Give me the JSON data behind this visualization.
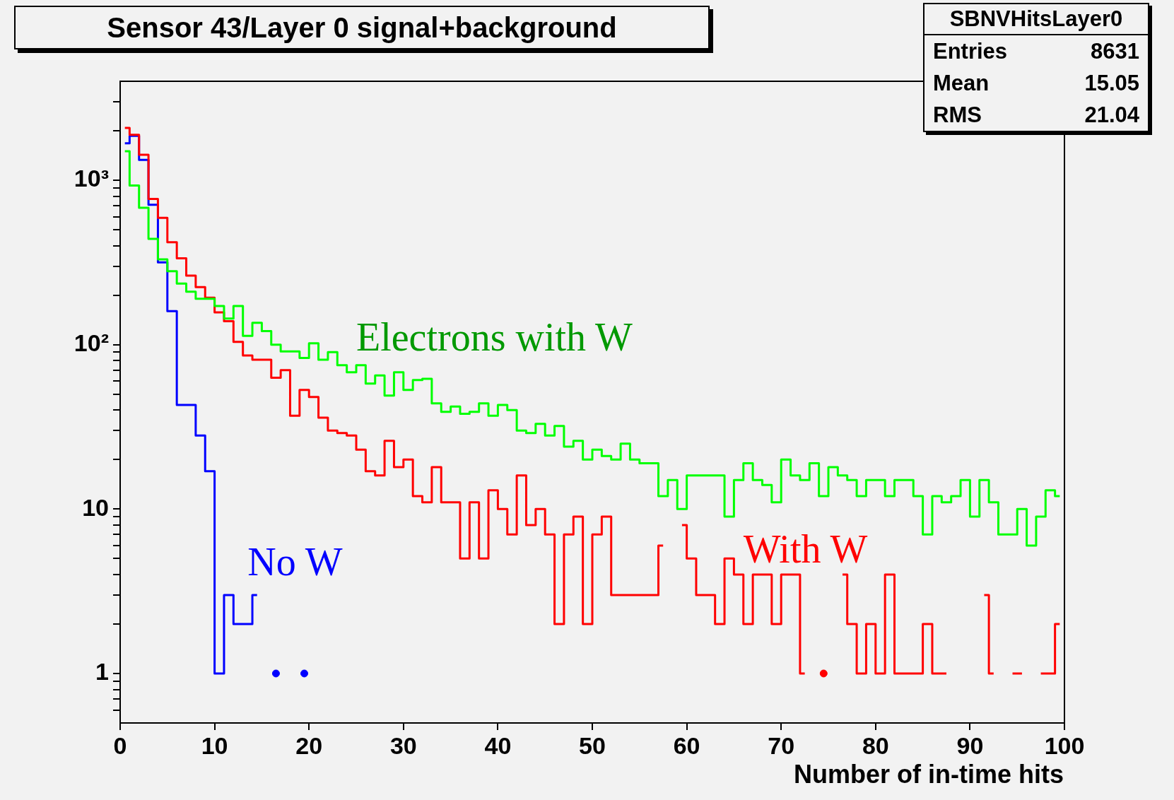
{
  "chart_data": {
    "type": "step",
    "title": "Sensor 43/Layer 0 signal+background",
    "xlabel": "Number of in-time hits",
    "annotations": [
      "SBNVHitsLayer0",
      "Entries",
      "8631",
      "Mean",
      "15.05",
      "RMS",
      "21.04"
    ],
    "x": [
      0.5,
      1.5,
      2.5,
      3.5,
      4.5,
      5.5,
      6.5,
      7.5,
      8.5,
      9.5,
      10.5,
      11.5,
      12.5,
      13.5,
      14.5,
      15.5,
      16.5,
      17.5,
      18.5,
      19.5,
      20.5,
      21.5,
      22.5,
      23.5,
      24.5,
      25.5,
      26.5,
      27.5,
      28.5,
      29.5,
      30.5,
      31.5,
      32.5,
      33.5,
      34.5,
      35.5,
      36.5,
      37.5,
      38.5,
      39.5,
      40.5,
      41.5,
      42.5,
      43.5,
      44.5,
      45.5,
      46.5,
      47.5,
      48.5,
      49.5,
      50.5,
      51.5,
      52.5,
      53.5,
      54.5,
      55.5,
      56.5,
      57.5,
      58.5,
      59.5,
      60.5,
      61.5,
      62.5,
      63.5,
      64.5,
      65.5,
      66.5,
      67.5,
      68.5,
      69.5,
      70.5,
      71.5,
      72.5,
      73.5,
      74.5,
      75.5,
      76.5,
      77.5,
      78.5,
      79.5,
      80.5,
      81.5,
      82.5,
      83.5,
      84.5,
      85.5,
      86.5,
      87.5,
      88.5,
      89.5,
      90.5,
      91.5,
      92.5,
      93.5,
      94.5,
      95.5,
      96.5,
      97.5,
      98.5,
      99.5
    ],
    "series": [
      {
        "name": "Electrons with W",
        "color": "#00ff00",
        "values": [
          1500,
          930,
          680,
          440,
          330,
          280,
          235,
          210,
          190,
          190,
          172,
          144,
          172,
          113,
          136,
          121,
          100,
          91,
          91,
          83,
          102,
          81,
          90,
          75,
          68,
          75,
          58,
          65,
          49,
          68,
          53,
          61,
          62,
          44,
          39,
          42,
          38,
          39,
          44,
          37,
          43,
          40,
          30,
          29,
          33,
          28,
          32,
          24,
          26,
          20,
          23,
          21,
          20,
          25,
          20,
          19,
          19,
          12,
          15,
          10,
          16,
          16,
          16,
          16,
          9,
          15,
          19,
          15,
          14,
          11,
          20,
          16,
          15,
          19,
          12,
          18,
          16,
          15,
          12,
          15,
          15,
          12,
          15,
          15,
          12,
          7,
          12,
          11,
          12,
          15,
          9,
          15,
          11,
          7,
          7,
          10,
          6,
          9,
          13,
          12
        ]
      },
      {
        "name": "With W",
        "color": "#ff0000",
        "values": [
          2080,
          1890,
          1430,
          770,
          590,
          420,
          335,
          263,
          224,
          193,
          157,
          139,
          104,
          86,
          81,
          81,
          63,
          70,
          37,
          53,
          48,
          36,
          30,
          29,
          28,
          23,
          17,
          16,
          26,
          18,
          20,
          12,
          11,
          18,
          11,
          11,
          5,
          11,
          5,
          13,
          10,
          7,
          16,
          8,
          10,
          7,
          2,
          7,
          9,
          2,
          7,
          9,
          3,
          3,
          3,
          3,
          3,
          6,
          null,
          8,
          5,
          3,
          3,
          2,
          5,
          4,
          2,
          4,
          4,
          2,
          4,
          4,
          1,
          null,
          1,
          null,
          4,
          2,
          1,
          2,
          1,
          4,
          1,
          1,
          1,
          2,
          1,
          1,
          null,
          null,
          null,
          3,
          1,
          null,
          1,
          1,
          null,
          1,
          1,
          2
        ]
      },
      {
        "name": "No W",
        "color": "#0000ff",
        "values": [
          1680,
          1860,
          1330,
          710,
          317,
          160,
          43,
          43,
          28,
          17,
          1,
          3,
          2,
          2,
          3,
          null,
          1,
          null,
          null,
          1,
          null,
          null,
          null,
          null,
          null,
          null,
          null,
          null,
          null,
          null,
          null,
          null,
          null,
          null,
          null,
          null,
          null,
          null,
          null,
          null,
          null,
          null,
          null,
          null,
          null,
          null,
          null,
          null,
          null,
          null,
          null,
          null,
          null,
          null,
          null,
          null,
          null,
          null,
          null,
          null,
          null,
          null,
          null,
          null,
          null,
          null,
          null,
          null,
          null,
          null,
          null,
          null,
          null,
          null,
          null,
          null,
          null,
          null,
          null,
          null,
          null,
          null,
          null,
          null,
          null,
          null,
          null,
          null,
          null,
          null,
          null,
          null,
          null,
          null,
          null,
          null,
          null,
          null,
          null,
          null
        ]
      }
    ],
    "xlim": [
      0,
      100
    ],
    "xticks": [
      0,
      10,
      20,
      30,
      40,
      50,
      60,
      70,
      80,
      90,
      100
    ],
    "ylim": [
      0.5,
      4000
    ],
    "yticks": [
      {
        "value": 0.6,
        "label": null
      },
      {
        "value": 0.7,
        "label": null
      },
      {
        "value": 0.8,
        "label": null
      },
      {
        "value": 0.9,
        "label": null
      },
      1,
      {
        "value": 2,
        "label": null
      },
      {
        "value": 3,
        "label": null
      },
      {
        "value": 4,
        "label": null
      },
      {
        "value": 5,
        "label": null
      },
      {
        "value": 6,
        "label": null
      },
      {
        "value": 7,
        "label": null
      },
      {
        "value": 8,
        "label": null
      },
      {
        "value": 9,
        "label": null
      },
      10,
      {
        "value": 20,
        "label": null
      },
      {
        "value": 30,
        "label": null
      },
      {
        "value": 40,
        "label": null
      },
      {
        "value": 50,
        "label": null
      },
      {
        "value": 60,
        "label": null
      },
      {
        "value": 70,
        "label": null
      },
      {
        "value": 80,
        "label": null
      },
      {
        "value": 90,
        "label": null
      },
      {
        "value": 100,
        "label": "10²"
      },
      {
        "value": 200,
        "label": null
      },
      {
        "value": 300,
        "label": null
      },
      {
        "value": 400,
        "label": null
      },
      {
        "value": 500,
        "label": null
      },
      {
        "value": 600,
        "label": null
      },
      {
        "value": 700,
        "label": null
      },
      {
        "value": 800,
        "label": null
      },
      {
        "value": 900,
        "label": null
      },
      {
        "value": 1000,
        "label": "10³"
      },
      {
        "value": 2000,
        "label": null
      },
      {
        "value": 3000,
        "label": null
      }
    ],
    "log": true,
    "grid": false,
    "legend": "center"
  }
}
